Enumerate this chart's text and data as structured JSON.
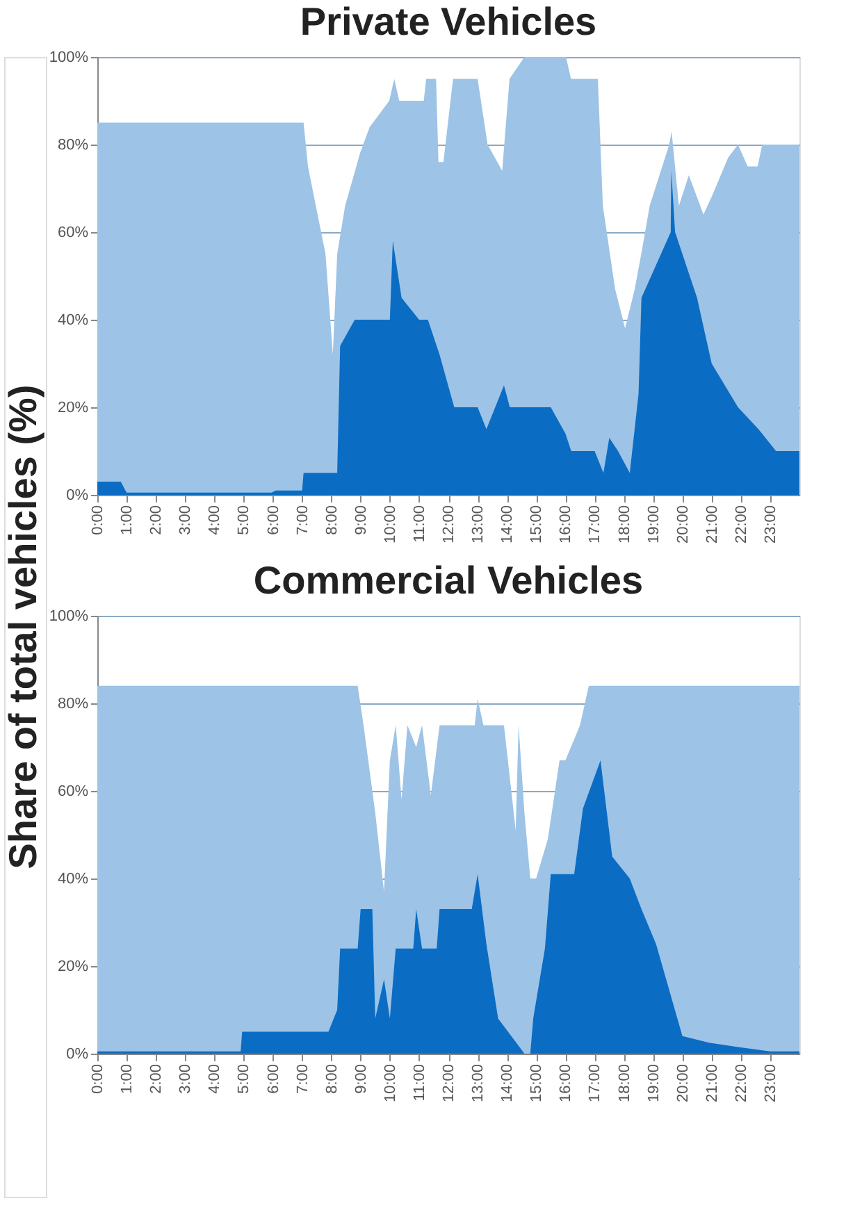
{
  "chart_data": [
    {
      "type": "area",
      "title": "Private Vehicles",
      "ylabel": "Share of total vehicles (%)",
      "grid": "y",
      "legend": false,
      "xlim": [
        0,
        24
      ],
      "ylim": [
        0,
        100
      ],
      "xticks": [
        {
          "value": 0,
          "label": "0:00"
        },
        {
          "value": 1,
          "label": "1:00"
        },
        {
          "value": 2,
          "label": "2:00"
        },
        {
          "value": 3,
          "label": "3:00"
        },
        {
          "value": 4,
          "label": "4:00"
        },
        {
          "value": 5,
          "label": "5:00"
        },
        {
          "value": 6,
          "label": "6:00"
        },
        {
          "value": 7,
          "label": "7:00"
        },
        {
          "value": 8,
          "label": "8:00"
        },
        {
          "value": 9,
          "label": "9:00"
        },
        {
          "value": 10,
          "label": "10:00"
        },
        {
          "value": 11,
          "label": "11:00"
        },
        {
          "value": 12,
          "label": "12:00"
        },
        {
          "value": 13,
          "label": "13:00"
        },
        {
          "value": 14,
          "label": "14:00"
        },
        {
          "value": 15,
          "label": "15:00"
        },
        {
          "value": 16,
          "label": "16:00"
        },
        {
          "value": 17,
          "label": "17:00"
        },
        {
          "value": 18,
          "label": "18:00"
        },
        {
          "value": 19,
          "label": "19:00"
        },
        {
          "value": 20,
          "label": "20:00"
        },
        {
          "value": 21,
          "label": "21:00"
        },
        {
          "value": 22,
          "label": "22:00"
        },
        {
          "value": 23,
          "label": "23:00"
        }
      ],
      "yticks": [
        {
          "value": 0,
          "label": "0%"
        },
        {
          "value": 20,
          "label": "20%"
        },
        {
          "value": 40,
          "label": "40%"
        },
        {
          "value": 60,
          "label": "60%"
        },
        {
          "value": 80,
          "label": "80%"
        },
        {
          "value": 100,
          "label": "100%"
        }
      ],
      "series": [
        {
          "color": "#9dc3e6",
          "x": [
            0,
            7.05,
            7.2,
            7.47,
            7.8,
            8.05,
            8.2,
            8.47,
            8.98,
            9.31,
            9.98,
            10.15,
            10.32,
            11.16,
            11.24,
            11.58,
            11.66,
            11.83,
            12.16,
            13.0,
            13.34,
            13.84,
            14.09,
            14.6,
            16.02,
            16.19,
            17.11,
            17.28,
            17.7,
            18.04,
            18.37,
            18.62,
            18.88,
            19.55,
            19.63,
            19.88,
            20.22,
            20.72,
            21.06,
            21.56,
            21.9,
            22.23,
            22.57,
            22.73,
            24
          ],
          "values": [
            85,
            85,
            75,
            66,
            55,
            32,
            55,
            66,
            78,
            84,
            90,
            95,
            90,
            90,
            95,
            95,
            76,
            76,
            95,
            95,
            80,
            74,
            95,
            100,
            100,
            95,
            95,
            66,
            47,
            38,
            47,
            56,
            66,
            80,
            83,
            66,
            73,
            64,
            69,
            77,
            80,
            75,
            75,
            80,
            80
          ]
        },
        {
          "color": "#0b6cc4",
          "x": [
            0,
            0.8,
            1.0,
            5.96,
            6.1,
            7.0,
            7.05,
            8.2,
            8.3,
            8.8,
            10.0,
            10.1,
            10.4,
            11.0,
            11.3,
            11.7,
            12.2,
            13.0,
            13.3,
            13.6,
            13.9,
            14.1,
            15.5,
            16.0,
            16.2,
            17.0,
            17.3,
            17.5,
            17.8,
            18.2,
            18.5,
            18.6,
            19.6,
            19.62,
            19.75,
            20.5,
            21.0,
            21.9,
            22.6,
            23.2,
            24
          ],
          "values": [
            3,
            3,
            0.5,
            0.5,
            1,
            1,
            5,
            5,
            34,
            40,
            40,
            58,
            45,
            40,
            40,
            32,
            20,
            20,
            15,
            20,
            25,
            20,
            20,
            14,
            10,
            10,
            5,
            13,
            10,
            5,
            23,
            45,
            60,
            74,
            60,
            45,
            30,
            20,
            15,
            10,
            10
          ]
        }
      ]
    },
    {
      "type": "area",
      "title": "Commercial Vehicles",
      "grid": "y",
      "legend": false,
      "xlim": [
        0,
        24
      ],
      "ylim": [
        0,
        100
      ],
      "xticks": [
        {
          "value": 0,
          "label": "0:00"
        },
        {
          "value": 1,
          "label": "1:00"
        },
        {
          "value": 2,
          "label": "2:00"
        },
        {
          "value": 3,
          "label": "3:00"
        },
        {
          "value": 4,
          "label": "4:00"
        },
        {
          "value": 5,
          "label": "5:00"
        },
        {
          "value": 6,
          "label": "6:00"
        },
        {
          "value": 7,
          "label": "7:00"
        },
        {
          "value": 8,
          "label": "8:00"
        },
        {
          "value": 9,
          "label": "9:00"
        },
        {
          "value": 10,
          "label": "10:00"
        },
        {
          "value": 11,
          "label": "11:00"
        },
        {
          "value": 12,
          "label": "12:00"
        },
        {
          "value": 13,
          "label": "13:00"
        },
        {
          "value": 14,
          "label": "14:00"
        },
        {
          "value": 15,
          "label": "15:00"
        },
        {
          "value": 16,
          "label": "16:00"
        },
        {
          "value": 17,
          "label": "17:00"
        },
        {
          "value": 18,
          "label": "18:00"
        },
        {
          "value": 19,
          "label": "19:00"
        },
        {
          "value": 20,
          "label": "20:00"
        },
        {
          "value": 21,
          "label": "21:00"
        },
        {
          "value": 22,
          "label": "22:00"
        },
        {
          "value": 23,
          "label": "23:00"
        }
      ],
      "yticks": [
        {
          "value": 0,
          "label": "0%"
        },
        {
          "value": 20,
          "label": "20%"
        },
        {
          "value": 40,
          "label": "40%"
        },
        {
          "value": 60,
          "label": "60%"
        },
        {
          "value": 80,
          "label": "80%"
        },
        {
          "value": 100,
          "label": "100%"
        }
      ],
      "series": [
        {
          "color": "#9dc3e6",
          "x": [
            0,
            8.9,
            9.1,
            9.5,
            9.8,
            10.0,
            10.2,
            10.4,
            10.6,
            10.9,
            11.1,
            11.4,
            11.7,
            12.9,
            13.0,
            13.2,
            13.9,
            14.3,
            14.4,
            14.6,
            14.8,
            15.0,
            15.4,
            15.8,
            16.0,
            16.5,
            16.8,
            24
          ],
          "values": [
            84,
            84,
            75,
            55,
            37,
            67,
            75,
            58,
            75,
            70,
            75,
            59,
            75,
            75,
            81,
            75,
            75,
            51,
            75,
            55,
            40,
            40,
            49,
            67,
            67,
            75,
            84,
            84
          ]
        },
        {
          "color": "#0b6cc4",
          "x": [
            0,
            4.9,
            4.95,
            7.9,
            8.2,
            8.3,
            8.9,
            9.0,
            9.4,
            9.5,
            9.8,
            10.0,
            10.2,
            10.8,
            10.9,
            11.1,
            11.6,
            11.7,
            12.8,
            13.0,
            13.3,
            13.7,
            14.6,
            14.8,
            14.9,
            15.3,
            15.5,
            16.3,
            16.6,
            17.2,
            17.6,
            18.2,
            18.6,
            19.1,
            19.7,
            20.0,
            20.9,
            21.9,
            23.0,
            24
          ],
          "values": [
            0.5,
            0.5,
            5,
            5,
            10,
            24,
            24,
            33,
            33,
            8,
            17,
            8,
            24,
            24,
            33,
            24,
            24,
            33,
            33,
            41,
            25,
            8,
            0,
            0,
            8,
            24,
            41,
            41,
            56,
            67,
            45,
            40,
            33,
            25,
            11,
            4,
            2.5,
            1.5,
            0.5,
            0.5
          ]
        }
      ]
    }
  ]
}
